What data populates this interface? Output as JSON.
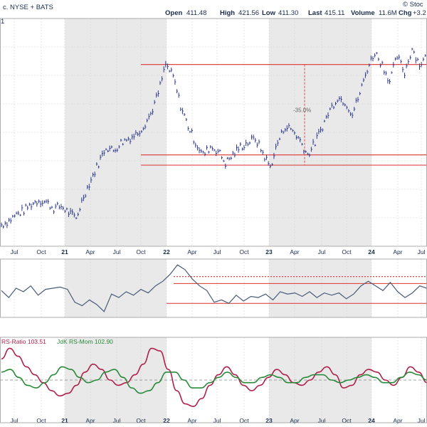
{
  "header": {
    "ticker_partial": "c. NYSE + BATS",
    "open_label": "Open",
    "open": "411.48",
    "high_label": "High",
    "high": "421.56",
    "low_label": "Low",
    "low": "411.30",
    "last_label": "Last",
    "last": "415.11",
    "volume_label": "Volume",
    "volume": "11.6M",
    "chg_label": "Chg",
    "chg": "+3.2",
    "watermark": "© Stoc",
    "left_edge_value": "1"
  },
  "colors": {
    "price": "#2f3a8f",
    "lines": "#e04848",
    "rs_line": "#4a5a7a",
    "rs_ratio": "#b0204a",
    "rs_mom": "#2a8a3a",
    "shade": "#e9e9e9",
    "grid": "#d4d4d4"
  },
  "chart_data": [
    {
      "type": "line",
      "panel": "price",
      "x_labels": [
        "Jul",
        "Oct",
        "21",
        "Apr",
        "Jul",
        "Oct",
        "22",
        "Apr",
        "Jul",
        "Oct",
        "23",
        "Apr",
        "Jul",
        "Oct",
        "24",
        "Apr",
        "Jul"
      ],
      "x_label_bold": [
        "21",
        "22",
        "23",
        "24"
      ],
      "annotation": "-35.0%",
      "series": [
        {
          "values": [
            2,
            4,
            7,
            9,
            12,
            14,
            13,
            10,
            11,
            8,
            5,
            16,
            24,
            32,
            40,
            38,
            42,
            44,
            46,
            50,
            56,
            66,
            80,
            74,
            60,
            50,
            42,
            36,
            40,
            38,
            32,
            36,
            40,
            42,
            44,
            37,
            30,
            42,
            50,
            48,
            43,
            36,
            42,
            50,
            58,
            64,
            62,
            56,
            66,
            78,
            86,
            80,
            72,
            84,
            76,
            88,
            80,
            84
          ]
        }
      ],
      "horizontal_lines": [
        80,
        36,
        31
      ]
    },
    {
      "type": "line",
      "panel": "relative_strength",
      "series": [
        {
          "values": [
            48,
            42,
            50,
            47,
            52,
            44,
            49,
            50,
            51,
            49,
            38,
            35,
            40,
            36,
            30,
            45,
            42,
            47,
            44,
            49,
            46,
            52,
            56,
            62,
            70,
            66,
            58,
            52,
            48,
            38,
            40,
            37,
            44,
            39,
            43,
            42,
            45,
            40,
            47,
            45,
            46,
            43,
            47,
            42,
            46,
            44,
            46,
            41,
            45,
            52,
            56,
            52,
            48,
            55,
            47,
            42,
            46,
            52,
            50
          ]
        }
      ],
      "horizontal_lines": [
        60,
        54,
        37
      ]
    },
    {
      "type": "line",
      "panel": "rrg",
      "legend": [
        "RS-Ratio 103.51",
        "JdK RS-Mom 102.90"
      ],
      "series": [
        {
          "name": "RS-Ratio 103.51",
          "values": [
            104,
            106,
            104.5,
            102.5,
            101,
            99.5,
            98,
            97,
            97.5,
            99,
            101.5,
            103,
            102,
            100,
            99,
            99.5,
            101,
            103,
            106,
            105.5,
            102,
            98,
            95.5,
            95,
            96.5,
            99,
            101,
            102.5,
            101,
            99,
            98,
            99,
            100.5,
            102,
            101,
            99.5,
            99,
            100,
            101.5,
            102.5,
            101,
            98.5,
            99,
            101,
            102,
            101.5,
            100,
            99,
            100.5,
            102.5,
            101.5,
            99.5
          ]
        },
        {
          "name": "JdK RS-Mom 102.90",
          "values": [
            101.5,
            102,
            100.5,
            99,
            98.5,
            99.5,
            101,
            102.5,
            102,
            100.5,
            99.5,
            100,
            101.5,
            102,
            100.5,
            98.5,
            97.5,
            98,
            99.5,
            101.5,
            101.5,
            100,
            98.5,
            98.5,
            99.5,
            100.5,
            101.5,
            100.5,
            99.5,
            99.5,
            100.5,
            101,
            100.5,
            99.5,
            99.5,
            100.5,
            101,
            101,
            100,
            99.5,
            100,
            100.5,
            101,
            100.5,
            99.5,
            99.5,
            100.5,
            101.5,
            101,
            100
          ]
        }
      ],
      "ylim": [
        93,
        107
      ]
    }
  ]
}
